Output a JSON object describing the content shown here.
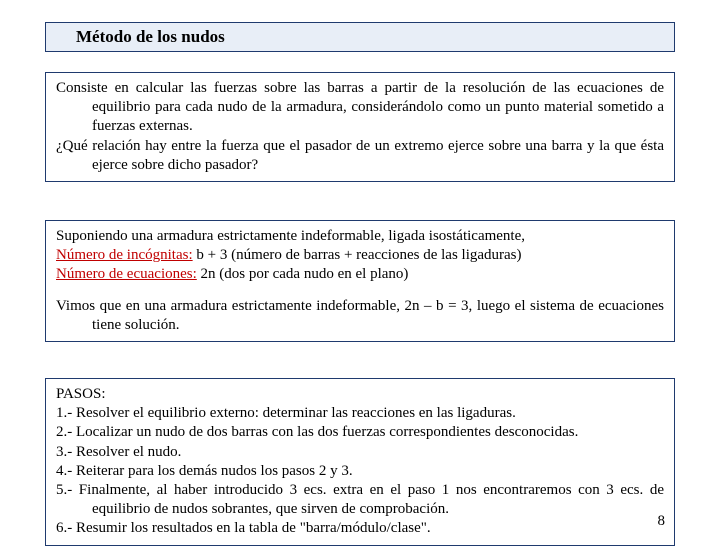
{
  "title": "Método de los nudos",
  "box1": {
    "p1a": "Consiste en calcular las fuerzas sobre las barras a partir de la resolución de las ecuaciones",
    "p1b": "de equilibrio para cada nudo de la armadura, considerándolo como un punto material sometido a fuerzas externas.",
    "p2a": "¿Qué relación hay entre la fuerza que el pasador de un extremo ejerce sobre una barra y",
    "p2b": "la que ésta ejerce sobre dicho pasador?"
  },
  "box2": {
    "l1": "Suponiendo una armadura estrictamente indeformable, ligada isostáticamente,",
    "l2_label": "Número de incógnitas:",
    "l2_rest": " b + 3 (número de barras + reacciones de las ligaduras)",
    "l3_label": "Número de ecuaciones:",
    "l3_rest": " 2n (dos por cada nudo en el plano)",
    "l4a": "Vimos que en una armadura estrictamente indeformable, 2n – b = 3, luego el sistema de",
    "l4b": "ecuaciones tiene solución."
  },
  "box3": {
    "heading": "PASOS:",
    "s1": "1.- Resolver el equilibrio externo: determinar las reacciones en las ligaduras.",
    "s2": "2.- Localizar un nudo de dos barras con las dos fuerzas correspondientes desconocidas.",
    "s3": "3.- Resolver el nudo.",
    "s4": "4.- Reiterar para los demás nudos los pasos 2 y 3.",
    "s5a": "5.- Finalmente, al haber introducido 3 ecs. extra en el paso 1 nos encontraremos con 3 ecs.",
    "s5b": "de equilibrio de nudos sobrantes, que sirven de comprobación.",
    "s6": "6.- Resumir los resultados en la tabla de \"barra/módulo/clase\"."
  },
  "page_number": "8"
}
